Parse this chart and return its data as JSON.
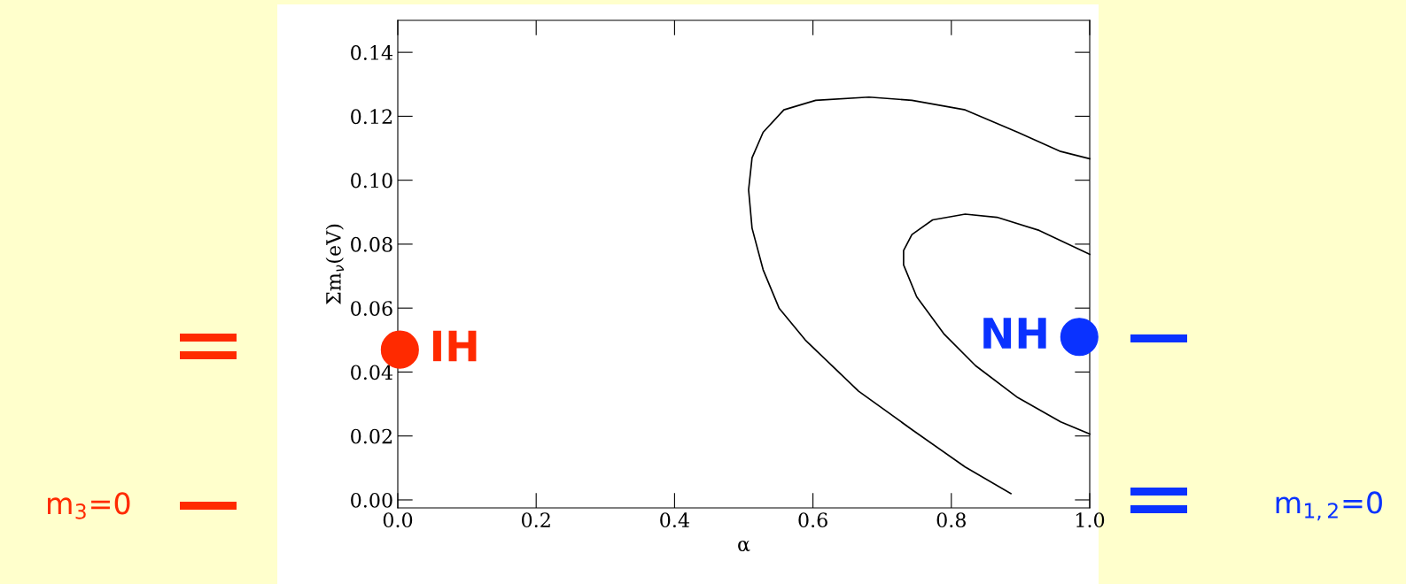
{
  "chart_data": {
    "type": "line",
    "xlabel": "α",
    "ylabel": "Σm$_{ν}$(eV)",
    "xlim": [
      0,
      1
    ],
    "ylim": [
      -0.0025,
      0.15
    ],
    "xticks": [
      {
        "value": 0,
        "label": "0.0"
      },
      {
        "value": 0.2,
        "label": "0.2"
      },
      {
        "value": 0.4,
        "label": "0.4"
      },
      {
        "value": 0.6,
        "label": "0.6"
      },
      {
        "value": 0.8,
        "label": "0.8"
      },
      {
        "value": 1,
        "label": "1.0"
      }
    ],
    "yticks": [
      {
        "value": 0,
        "label": "0.00"
      },
      {
        "value": 0.02,
        "label": "0.02"
      },
      {
        "value": 0.04,
        "label": "0.04"
      },
      {
        "value": 0.06,
        "label": "0.06"
      },
      {
        "value": 0.08,
        "label": "0.08"
      },
      {
        "value": 0.1,
        "label": "0.10"
      },
      {
        "value": 0.12,
        "label": "0.12"
      },
      {
        "value": 0.14,
        "label": "0.14"
      }
    ],
    "series": [
      {
        "color": "#000000",
        "x": [
          0.886,
          0.82,
          0.743,
          0.666,
          0.589,
          0.551,
          0.528,
          0.512,
          0.507,
          0.512,
          0.528,
          0.558,
          0.604,
          0.681,
          0.743,
          0.82,
          0.896,
          0.958,
          1.0
        ],
        "values": [
          0.002,
          0.0103,
          0.022,
          0.034,
          0.05,
          0.06,
          0.072,
          0.085,
          0.097,
          0.107,
          0.115,
          0.122,
          0.125,
          0.126,
          0.125,
          0.122,
          0.115,
          0.109,
          0.1067
        ]
      },
      {
        "color": "#000000",
        "x": [
          1.0,
          0.958,
          0.896,
          0.835,
          0.789,
          0.75,
          0.731,
          0.731,
          0.743,
          0.773,
          0.82,
          0.866,
          0.927,
          1.0
        ],
        "values": [
          0.0206,
          0.0244,
          0.032,
          0.042,
          0.052,
          0.0635,
          0.0735,
          0.078,
          0.083,
          0.0876,
          0.0894,
          0.0884,
          0.0843,
          0.0768
        ]
      },
      {
        "type": "scatter",
        "name": "IH",
        "color": "#ff2a00",
        "marker": "circle",
        "x": [
          0.003
        ],
        "values": [
          0.047
        ]
      },
      {
        "type": "scatter",
        "name": "NH",
        "color": "#0a32ff",
        "marker": "circle",
        "x": [
          0.985
        ],
        "values": [
          0.051
        ]
      }
    ],
    "annotations": [
      "m$_{3}$=0",
      "m$_{1,2}$=0"
    ]
  }
}
